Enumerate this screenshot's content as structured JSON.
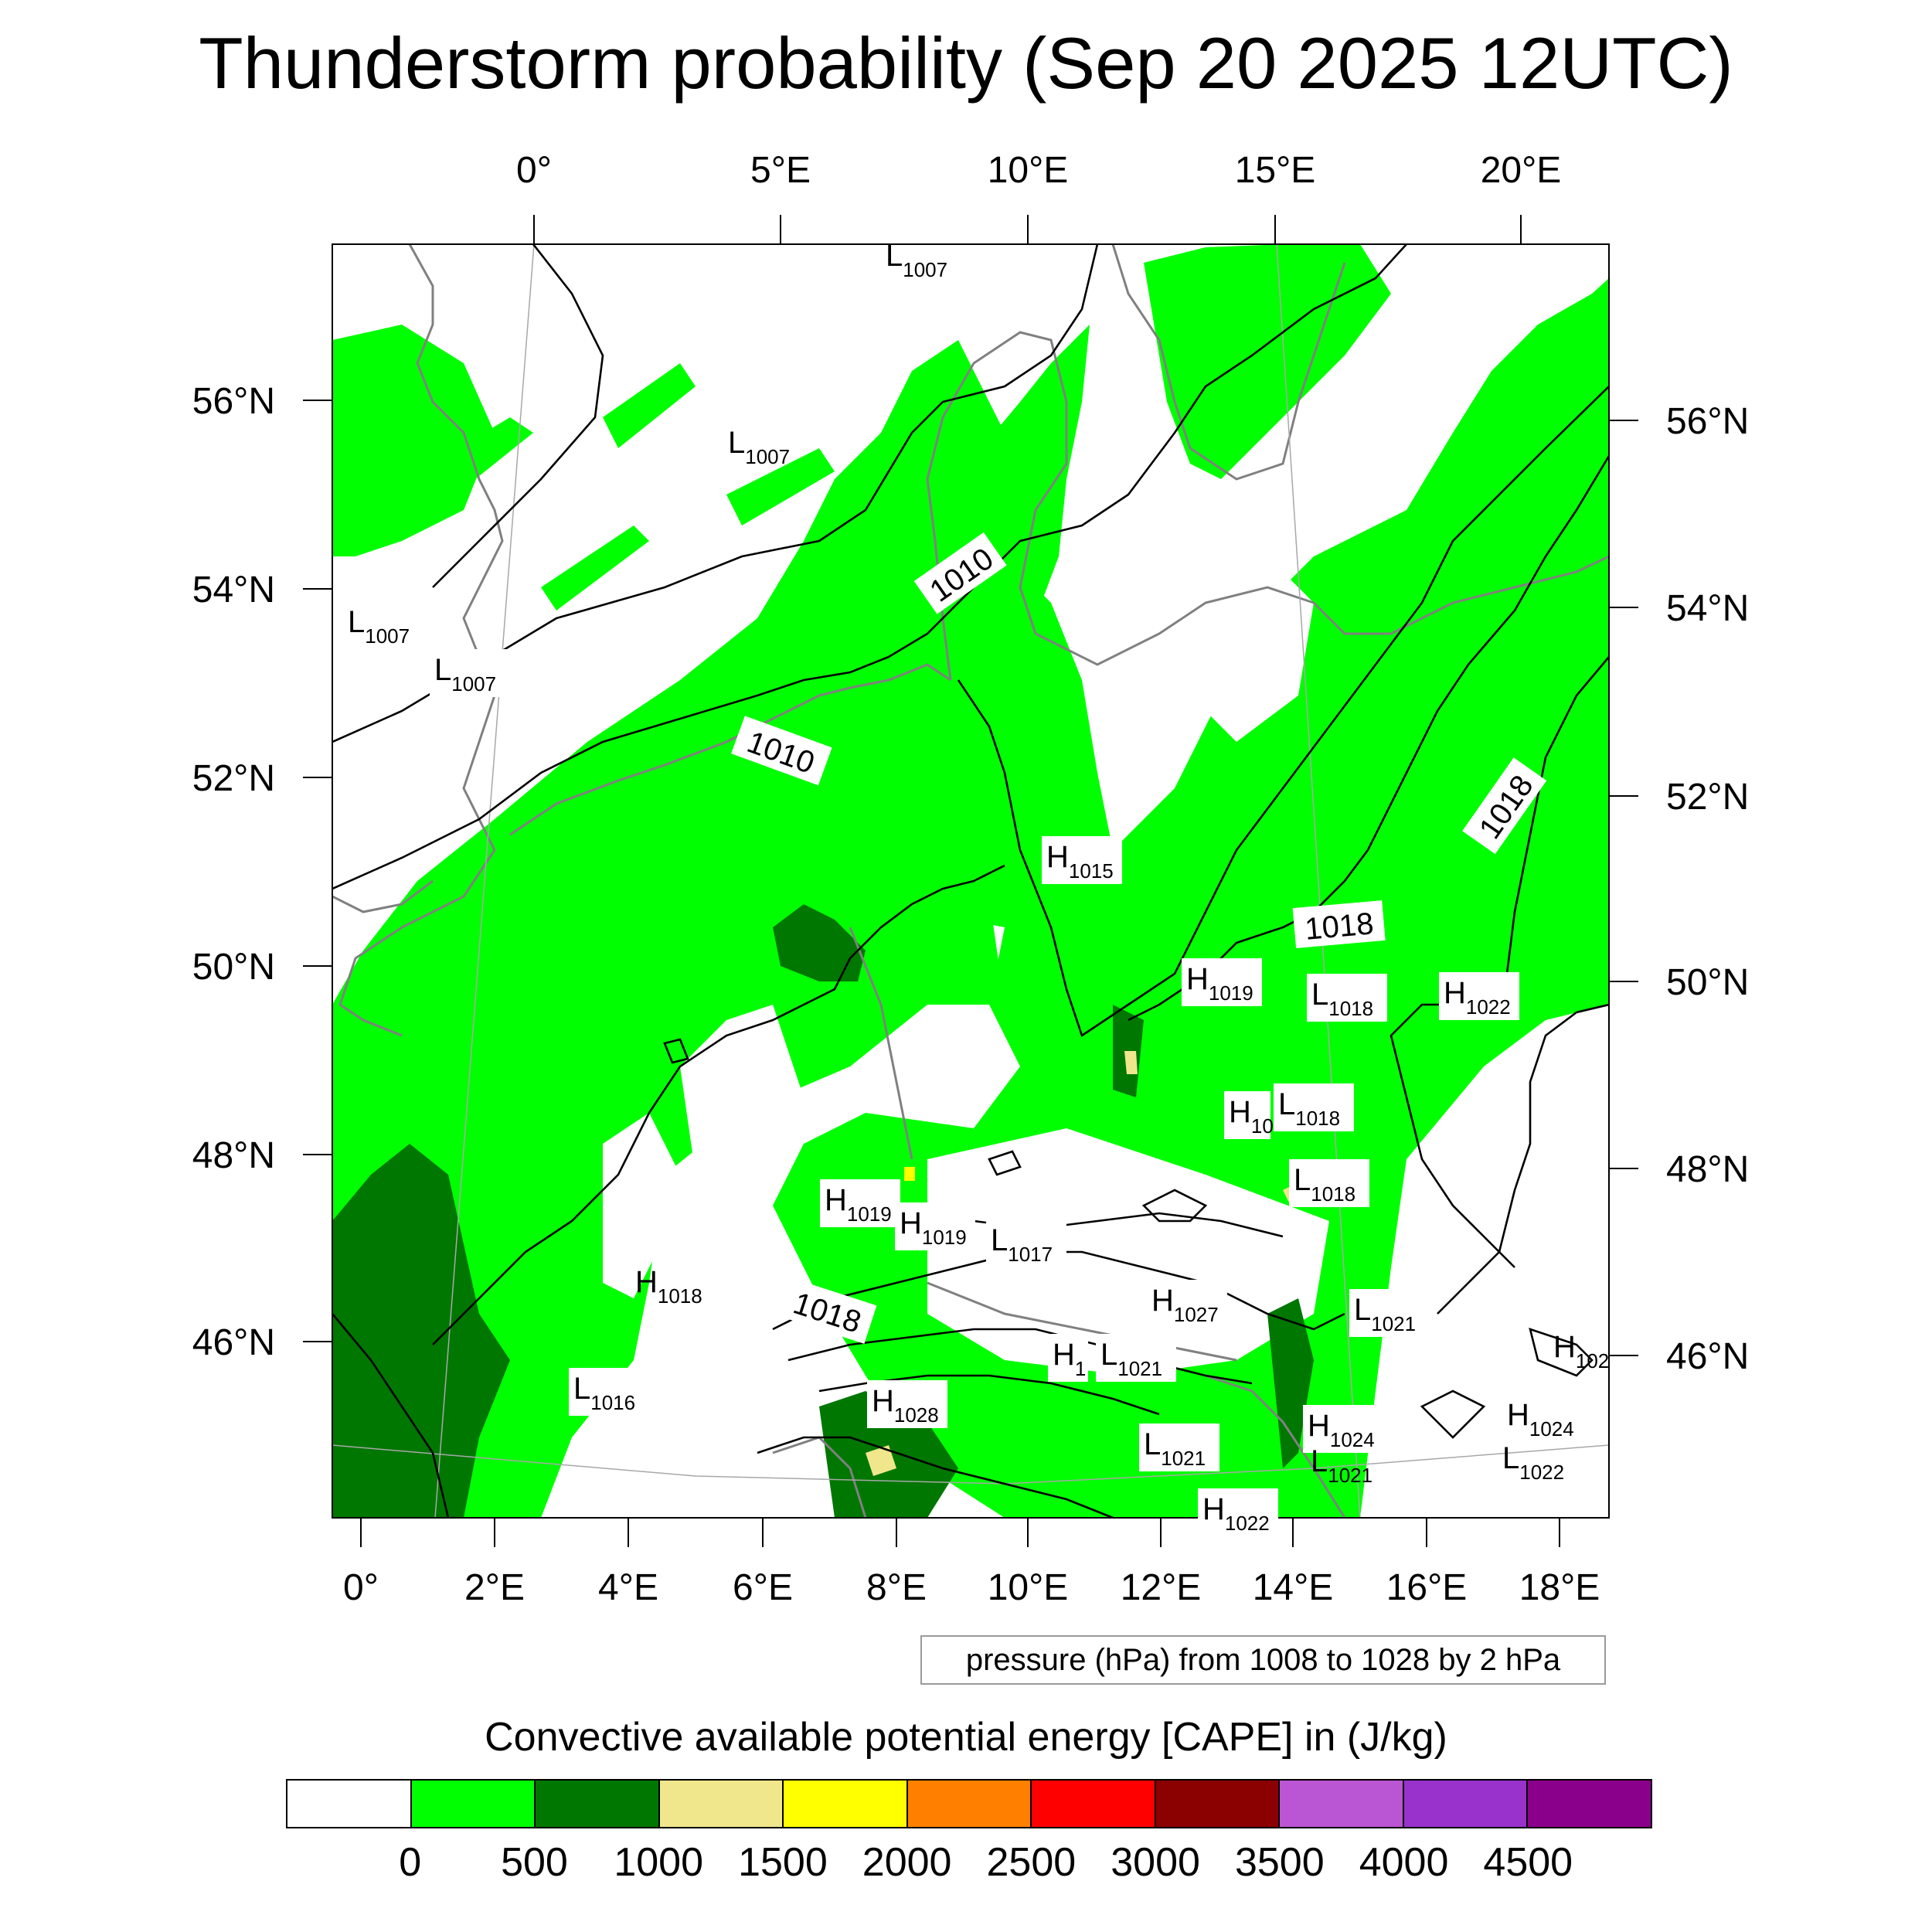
{
  "title": "Thunderstorm probability (Sep 20 2025 12UTC)",
  "map": {
    "top_axis_labels": [
      "0°",
      "5°E",
      "10°E",
      "15°E",
      "20°E"
    ],
    "bottom_axis_labels": [
      "0°",
      "2°E",
      "4°E",
      "6°E",
      "8°E",
      "10°E",
      "12°E",
      "14°E",
      "16°E",
      "18°E"
    ],
    "left_axis_labels": [
      "56°N",
      "54°N",
      "52°N",
      "50°N",
      "48°N",
      "46°N"
    ],
    "right_axis_labels": [
      "56°N",
      "54°N",
      "52°N",
      "50°N",
      "48°N",
      "46°N"
    ],
    "isobar_labels": [
      "1010",
      "1010",
      "1018",
      "1018",
      "1018"
    ],
    "pressure_centers": [
      {
        "letter": "L",
        "value": "1007"
      },
      {
        "letter": "L",
        "value": "1007"
      },
      {
        "letter": "L",
        "value": "1007"
      },
      {
        "letter": "L",
        "value": "1007"
      },
      {
        "letter": "H",
        "value": "1015"
      },
      {
        "letter": "H",
        "value": "1019"
      },
      {
        "letter": "L",
        "value": "1018"
      },
      {
        "letter": "H",
        "value": "1022"
      },
      {
        "letter": "H",
        "value": "10"
      },
      {
        "letter": "L",
        "value": "1018"
      },
      {
        "letter": "L",
        "value": "1018"
      },
      {
        "letter": "H",
        "value": "1019"
      },
      {
        "letter": "H",
        "value": "1019"
      },
      {
        "letter": "L",
        "value": "1017"
      },
      {
        "letter": "H",
        "value": "1018"
      },
      {
        "letter": "H",
        "value": "1027"
      },
      {
        "letter": "L",
        "value": "1021"
      },
      {
        "letter": "H",
        "value": "102"
      },
      {
        "letter": "L",
        "value": "1016"
      },
      {
        "letter": "H",
        "value": "1"
      },
      {
        "letter": "L",
        "value": "1021"
      },
      {
        "letter": "H",
        "value": "1028"
      },
      {
        "letter": "H",
        "value": "1024"
      },
      {
        "letter": "H",
        "value": "1024"
      },
      {
        "letter": "L",
        "value": "1021"
      },
      {
        "letter": "L",
        "value": "1021"
      },
      {
        "letter": "L",
        "value": "1022"
      },
      {
        "letter": "H",
        "value": "1022"
      }
    ]
  },
  "pressure_note": "pressure (hPa) from 1008 to 1028 by 2 hPa",
  "colorbar": {
    "title": "Convective available potential energy [CAPE] in (J/kg)",
    "colors": [
      "#ffffff",
      "#00ff00",
      "#007700",
      "#f0e68c",
      "#ffff00",
      "#ff8000",
      "#ff0000",
      "#8b0000",
      "#ba55d3",
      "#9932cc",
      "#8b008b"
    ],
    "tick_labels": [
      "0",
      "500",
      "1000",
      "1500",
      "2000",
      "2500",
      "3000",
      "3500",
      "4000",
      "4500"
    ]
  },
  "legend_colors": {
    "light_green": "#00ff00",
    "dark_green": "#007700",
    "khaki": "#f0e68c",
    "yellow": "#ffff00",
    "coastline": "#808080",
    "isobar": "#000000"
  }
}
